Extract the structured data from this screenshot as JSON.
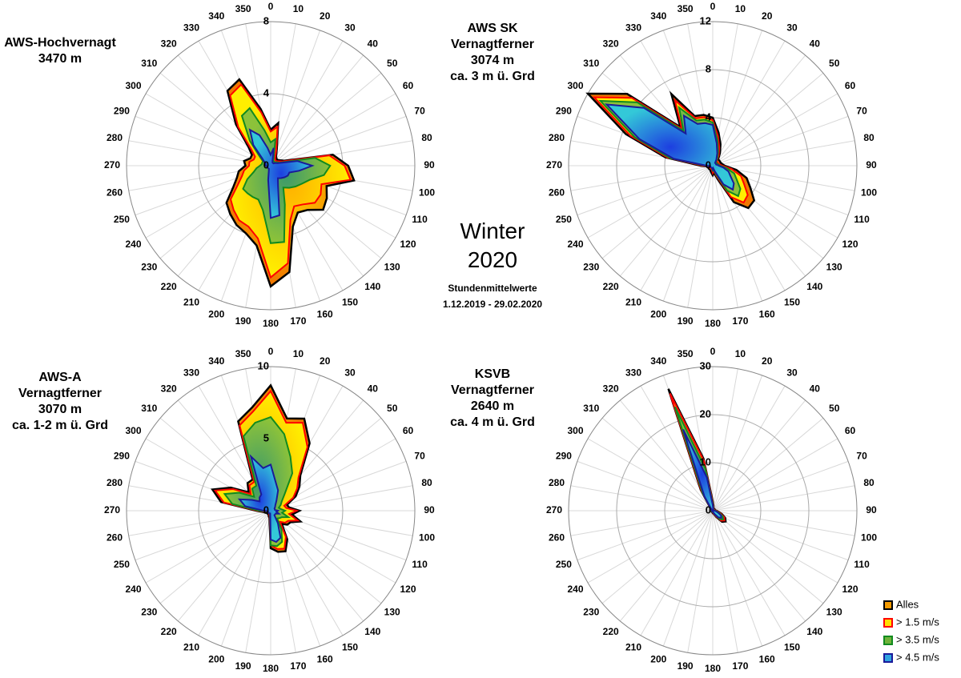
{
  "titles": {
    "c1": [
      "AWS-Hochvernagt",
      "3470 m"
    ],
    "c2": [
      "AWS SK",
      "Vernagtferner",
      "3074 m",
      "ca. 3 m ü. Grd"
    ],
    "c3": [
      "AWS-A",
      "Vernagtferner",
      "3070 m",
      "ca. 1-2 m ü. Grd"
    ],
    "c4": [
      "KSVB",
      "Vernagtferner",
      "2640 m",
      "ca. 4 m ü. Grd"
    ],
    "season": "Winter",
    "year": "2020",
    "note1": "Stundenmittelwerte",
    "note2": "1.12.2019 - 29.02.2020"
  },
  "legend": [
    {
      "label": "Alles",
      "color": "#f39a00",
      "stroke": "#000000"
    },
    {
      "label": "> 1.5 m/s",
      "color": "#ffe000",
      "stroke": "#ff0000"
    },
    {
      "label": "> 3.5 m/s",
      "color": "#6fb33a",
      "stroke": "#118a1f"
    },
    {
      "label": "> 4.5 m/s",
      "color": "#2fa4e0",
      "stroke": "#1a1a9a"
    }
  ],
  "chart_data": [
    {
      "type": "radar",
      "title": "AWS-Hochvernagt 3470 m",
      "directions": [
        0,
        10,
        20,
        30,
        40,
        50,
        60,
        70,
        80,
        90,
        100,
        110,
        120,
        130,
        140,
        150,
        160,
        170,
        180,
        190,
        200,
        210,
        220,
        230,
        240,
        250,
        260,
        270,
        280,
        290,
        300,
        310,
        320,
        330,
        340,
        350
      ],
      "rticks": [
        0,
        4,
        8
      ],
      "rmax": 8,
      "series": [
        {
          "name": "Alles",
          "values": [
            2.0,
            2.4,
            1.0,
            0.6,
            0.5,
            0.5,
            0.6,
            0.8,
            3.5,
            4.3,
            4.7,
            3.3,
            3.6,
            3.8,
            3.2,
            3.0,
            3.6,
            6.0,
            6.7,
            4.5,
            4.0,
            3.8,
            3.5,
            3.2,
            2.4,
            2.0,
            1.8,
            1.4,
            1.5,
            1.2,
            1.2,
            1.6,
            3.0,
            4.8,
            5.1,
            3.2
          ]
        },
        {
          "name": "> 1.5 m/s",
          "values": [
            1.9,
            2.2,
            0.9,
            0.5,
            0.4,
            0.4,
            0.5,
            0.7,
            3.3,
            4.1,
            4.5,
            3.0,
            3.2,
            3.2,
            2.8,
            2.6,
            3.2,
            5.5,
            6.2,
            4.1,
            3.6,
            3.5,
            3.2,
            2.9,
            2.1,
            1.7,
            1.5,
            1.2,
            1.2,
            1.0,
            1.0,
            1.4,
            2.8,
            4.5,
            4.8,
            3.0
          ]
        },
        {
          "name": "> 3.5 m/s",
          "values": [
            1.3,
            1.5,
            0.5,
            0.3,
            0.3,
            0.3,
            0.4,
            0.5,
            2.5,
            3.3,
            3.0,
            2.3,
            2.0,
            1.8,
            1.6,
            1.4,
            2.3,
            4.3,
            4.3,
            2.5,
            2.0,
            2.0,
            2.0,
            2.0,
            1.5,
            1.0,
            0.8,
            0.6,
            0.5,
            0.5,
            0.5,
            0.8,
            1.8,
            3.2,
            3.4,
            2.0
          ]
        },
        {
          "name": "> 4.5 m/s",
          "values": [
            0.6,
            1.0,
            0.3,
            0.2,
            0.2,
            0.2,
            0.3,
            0.4,
            1.5,
            2.3,
            1.6,
            1.1,
            1.1,
            1.0,
            0.9,
            0.8,
            1.2,
            2.8,
            2.9,
            0.8,
            0.3,
            0.2,
            0.2,
            0.2,
            0.2,
            0.2,
            0.2,
            0.3,
            0.3,
            0.3,
            0.4,
            0.6,
            1.5,
            2.3,
            1.8,
            1.0
          ]
        }
      ]
    },
    {
      "type": "radar",
      "title": "AWS SK Vernagtferner 3074 m ca. 3 m ü. Grd",
      "directions": [
        0,
        10,
        20,
        30,
        40,
        50,
        60,
        70,
        80,
        90,
        100,
        110,
        120,
        130,
        140,
        150,
        160,
        170,
        180,
        190,
        200,
        210,
        220,
        230,
        240,
        250,
        260,
        270,
        280,
        290,
        300,
        310,
        320,
        330,
        340,
        350
      ],
      "rticks": [
        0,
        4,
        8,
        12
      ],
      "rmax": 12,
      "series": [
        {
          "name": "Alles",
          "values": [
            4.0,
            2.8,
            1.9,
            1.2,
            0.7,
            0.7,
            0.7,
            0.7,
            0.8,
            1.0,
            2.0,
            3.0,
            3.6,
            4.5,
            4.6,
            3.5,
            1.2,
            0.6,
            0.8,
            0.6,
            0.5,
            0.4,
            0.4,
            0.4,
            0.4,
            0.4,
            0.4,
            1.0,
            4.0,
            7.7,
            12.0,
            9.3,
            4.2,
            6.9,
            4.4,
            4.3
          ]
        },
        {
          "name": "> 1.5 m/s",
          "values": [
            3.8,
            2.5,
            1.6,
            1.0,
            0.5,
            0.5,
            0.5,
            0.5,
            0.6,
            0.8,
            1.6,
            2.5,
            3.0,
            3.8,
            4.0,
            3.0,
            0.9,
            0.4,
            0.6,
            0.4,
            0.3,
            0.3,
            0.3,
            0.3,
            0.3,
            0.3,
            0.3,
            0.8,
            3.8,
            7.3,
            11.4,
            8.8,
            4.0,
            6.3,
            4.2,
            4.1
          ]
        },
        {
          "name": "> 3.5 m/s",
          "values": [
            3.6,
            2.2,
            1.3,
            0.8,
            0.4,
            0.4,
            0.4,
            0.4,
            0.5,
            0.6,
            1.2,
            1.9,
            2.3,
            3.0,
            3.3,
            2.4,
            0.7,
            0.3,
            0.4,
            0.3,
            0.2,
            0.2,
            0.2,
            0.2,
            0.2,
            0.2,
            0.2,
            0.6,
            3.6,
            6.9,
            10.8,
            8.2,
            3.8,
            5.6,
            4.0,
            3.9
          ]
        },
        {
          "name": "> 4.5 m/s",
          "values": [
            3.4,
            1.9,
            1.1,
            0.6,
            0.3,
            0.3,
            0.3,
            0.3,
            0.4,
            0.5,
            0.9,
            1.4,
            1.7,
            2.3,
            2.6,
            1.8,
            0.5,
            0.2,
            0.3,
            0.2,
            0.2,
            0.2,
            0.2,
            0.2,
            0.2,
            0.2,
            0.2,
            0.5,
            3.3,
            6.5,
            10.2,
            7.5,
            3.5,
            4.8,
            3.7,
            3.6
          ]
        }
      ]
    },
    {
      "type": "radar",
      "title": "AWS-A Vernagtferner 3070 m ca. 1-2 m ü. Grd",
      "directions": [
        0,
        10,
        20,
        30,
        40,
        50,
        60,
        70,
        80,
        90,
        100,
        110,
        120,
        130,
        140,
        150,
        160,
        170,
        180,
        190,
        200,
        210,
        220,
        230,
        240,
        250,
        260,
        270,
        280,
        290,
        300,
        310,
        320,
        330,
        340,
        350
      ],
      "rticks": [
        0,
        5,
        10
      ],
      "rmax": 10,
      "series": [
        {
          "name": "Alles",
          "values": [
            8.7,
            6.5,
            6.8,
            5.4,
            3.2,
            2.6,
            2.0,
            1.2,
            1.3,
            2.0,
            1.5,
            2.2,
            1.6,
            1.5,
            1.2,
            2.3,
            3.0,
            2.9,
            2.6,
            0.5,
            0.4,
            0.3,
            0.3,
            0.3,
            0.3,
            0.4,
            0.5,
            1.0,
            3.5,
            4.3,
            3.2,
            2.0,
            2.5,
            2.5,
            6.6,
            7.3
          ]
        },
        {
          "name": "> 1.5 m/s",
          "values": [
            8.3,
            6.2,
            6.5,
            5.1,
            3.0,
            2.4,
            1.8,
            1.0,
            1.1,
            1.8,
            1.3,
            2.0,
            1.4,
            1.3,
            1.0,
            2.1,
            2.8,
            2.7,
            2.4,
            0.4,
            0.3,
            0.2,
            0.2,
            0.2,
            0.2,
            0.3,
            0.4,
            0.9,
            3.3,
            4.1,
            3.0,
            1.8,
            2.3,
            2.3,
            6.3,
            7.0
          ]
        },
        {
          "name": "> 3.5 m/s",
          "values": [
            6.5,
            5.4,
            4.0,
            3.0,
            1.5,
            1.0,
            0.8,
            0.6,
            0.7,
            1.0,
            0.8,
            1.3,
            0.9,
            0.8,
            0.7,
            1.5,
            2.3,
            2.5,
            2.4,
            0.3,
            0.2,
            0.2,
            0.2,
            0.2,
            0.2,
            0.2,
            0.3,
            0.8,
            2.7,
            3.4,
            2.5,
            1.5,
            2.0,
            2.0,
            5.5,
            6.2
          ]
        },
        {
          "name": "> 4.5 m/s",
          "values": [
            3.2,
            2.0,
            1.5,
            0.8,
            0.5,
            0.4,
            0.3,
            0.3,
            0.3,
            0.5,
            0.4,
            0.6,
            0.4,
            0.4,
            0.4,
            1.0,
            2.0,
            2.2,
            2.0,
            0.2,
            0.2,
            0.2,
            0.2,
            0.2,
            0.2,
            0.2,
            0.2,
            0.5,
            1.8,
            2.3,
            1.5,
            1.0,
            1.2,
            1.3,
            4.0,
            3.0
          ]
        }
      ]
    },
    {
      "type": "radar",
      "title": "KSVB Vernagtferner 2640 m ca. 4 m ü. Grd",
      "directions": [
        0,
        10,
        20,
        30,
        40,
        50,
        60,
        70,
        80,
        90,
        100,
        110,
        120,
        130,
        140,
        150,
        160,
        170,
        180,
        190,
        200,
        210,
        220,
        230,
        240,
        250,
        260,
        270,
        280,
        290,
        300,
        310,
        320,
        330,
        340,
        350
      ],
      "rticks": [
        0,
        10,
        20,
        30
      ],
      "rmax": 30,
      "series": [
        {
          "name": "Alles",
          "values": [
            2.0,
            1.0,
            0.5,
            0.5,
            0.5,
            0.5,
            0.5,
            0.5,
            0.5,
            0.8,
            1.2,
            2.0,
            3.0,
            3.5,
            3.0,
            1.5,
            0.8,
            0.5,
            0.5,
            0.3,
            0.3,
            0.3,
            0.3,
            0.3,
            0.3,
            0.3,
            0.3,
            0.5,
            0.5,
            0.5,
            0.5,
            0.5,
            0.8,
            5.0,
            27.0,
            11.0
          ]
        },
        {
          "name": "> 1.5 m/s",
          "values": [
            1.8,
            0.9,
            0.4,
            0.4,
            0.4,
            0.4,
            0.4,
            0.4,
            0.4,
            0.7,
            1.1,
            1.8,
            2.8,
            3.2,
            2.7,
            1.3,
            0.7,
            0.4,
            0.4,
            0.2,
            0.2,
            0.2,
            0.2,
            0.2,
            0.2,
            0.2,
            0.2,
            0.4,
            0.4,
            0.4,
            0.4,
            0.4,
            0.7,
            4.7,
            26.0,
            10.5
          ]
        },
        {
          "name": "> 3.5 m/s",
          "values": [
            1.5,
            0.7,
            0.3,
            0.3,
            0.3,
            0.3,
            0.3,
            0.3,
            0.3,
            0.5,
            0.9,
            1.5,
            2.4,
            2.8,
            2.3,
            1.0,
            0.5,
            0.3,
            0.3,
            0.2,
            0.2,
            0.2,
            0.2,
            0.2,
            0.2,
            0.2,
            0.2,
            0.3,
            0.3,
            0.3,
            0.3,
            0.3,
            0.6,
            4.2,
            23.0,
            9.0
          ]
        },
        {
          "name": "> 4.5 m/s",
          "values": [
            1.2,
            0.5,
            0.2,
            0.2,
            0.2,
            0.2,
            0.2,
            0.2,
            0.2,
            0.4,
            0.7,
            1.2,
            2.0,
            2.3,
            1.8,
            0.8,
            0.4,
            0.2,
            0.2,
            0.1,
            0.1,
            0.1,
            0.1,
            0.1,
            0.1,
            0.1,
            0.1,
            0.2,
            0.2,
            0.2,
            0.2,
            0.2,
            0.5,
            3.5,
            18.0,
            7.0
          ]
        }
      ]
    }
  ]
}
